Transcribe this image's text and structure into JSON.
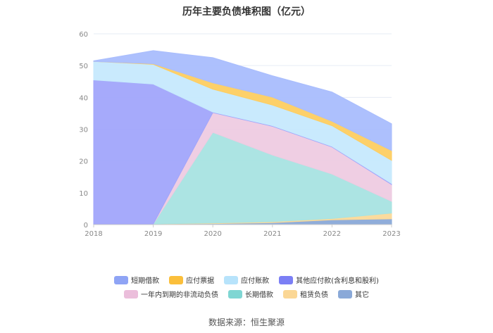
{
  "chart_data": {
    "type": "area",
    "stacked": true,
    "title": "历年主要负债堆积图（亿元）",
    "x": [
      "2018",
      "2019",
      "2020",
      "2021",
      "2022",
      "2023"
    ],
    "ylim": [
      0,
      60
    ],
    "yticks": [
      "0",
      "10",
      "20",
      "30",
      "40",
      "50",
      "60"
    ],
    "grid": true,
    "legend_position": "bottom",
    "series": [
      {
        "name": "其它",
        "color": "#8aa9d8",
        "values": [
          0.2,
          0.2,
          0.3,
          0.6,
          1.5,
          1.8
        ]
      },
      {
        "name": "租赁负债",
        "color": "#fad999",
        "values": [
          0,
          0,
          0.2,
          0.3,
          0.4,
          1.8
        ]
      },
      {
        "name": "长期借款",
        "color": "#a8e3e1",
        "values": [
          0,
          0,
          28.5,
          21,
          14,
          3.7
        ]
      },
      {
        "name": "一年内到期的非流动负债",
        "color": "#eecbe1",
        "values": [
          0,
          0,
          6.2,
          9,
          8.5,
          5.3
        ]
      },
      {
        "name": "其他应付款(含利息和股利)",
        "color": "#a1a5fb",
        "values": [
          45.3,
          44,
          0.2,
          0.2,
          0.2,
          0.3
        ]
      },
      {
        "name": "应付账款",
        "color": "#c6e9fd",
        "values": [
          5.8,
          6.2,
          7.2,
          6.5,
          6.5,
          7.3
        ]
      },
      {
        "name": "应付票据",
        "color": "#fdcd61",
        "values": [
          0,
          0.2,
          2,
          2.5,
          1.4,
          3.1
        ]
      },
      {
        "name": "短期借款",
        "color": "#a9bdfd",
        "values": [
          0.2,
          4.1,
          7.9,
          6.7,
          9.2,
          8.4
        ]
      }
    ],
    "legend_order": [
      "短期借款",
      "应付票据",
      "应付账款",
      "其他应付款(含利息和股利)",
      "一年内到期的非流动负债",
      "长期借款",
      "租赁负债",
      "其它"
    ],
    "legend_swatch_colors": {
      "短期借款": "#8fa4f5",
      "应付票据": "#fbbf3b",
      "应付账款": "#b7e3fb",
      "其他应付款(含利息和股利)": "#7b7ff5",
      "一年内到期的非流动负债": "#ebbedb",
      "长期借款": "#7fd6d3",
      "租赁负债": "#fbd795",
      "其它": "#8aa9d8"
    }
  },
  "source": "数据来源：恒生聚源"
}
